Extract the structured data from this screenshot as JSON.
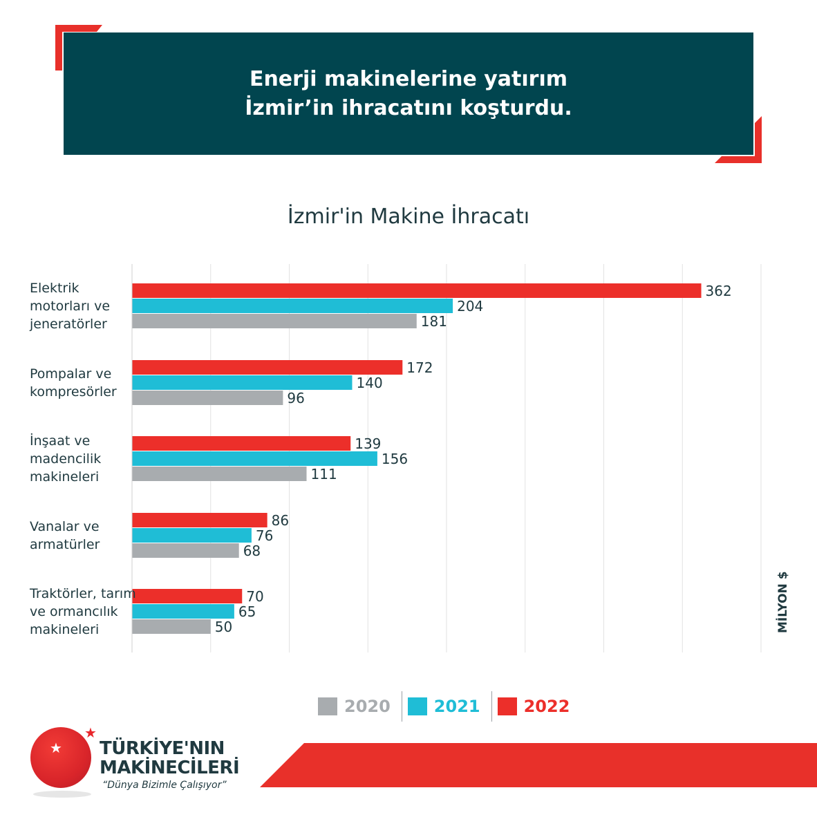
{
  "banner": {
    "line1": "Enerji makinelerine yatırım",
    "line2": "İzmir’in ihracatını koşturdu."
  },
  "colors": {
    "banner_bg": "#01454f",
    "accent_red": "#e8302a",
    "series_2020": "#a8acaf",
    "series_2021": "#1fbdd6",
    "series_2022": "#ec2f2a",
    "text_dark": "#203a40"
  },
  "chart_data": {
    "type": "bar",
    "orientation": "horizontal",
    "title": "İzmir'in Makine İhracatı",
    "unit_label": "MİLYON $",
    "categories": [
      [
        "Elektrik",
        "motorları ve",
        "jeneratörler"
      ],
      [
        "Pompalar ve",
        "kompresörler"
      ],
      [
        "İnşaat ve",
        "madencilik",
        "makineleri"
      ],
      [
        "Vanalar ve",
        "armatürler"
      ],
      [
        "Traktörler, tarım",
        "ve ormancılık",
        "makineleri"
      ]
    ],
    "series": [
      {
        "name": "2022",
        "values": [
          362,
          172,
          139,
          86,
          70
        ]
      },
      {
        "name": "2021",
        "values": [
          204,
          140,
          156,
          76,
          65
        ]
      },
      {
        "name": "2020",
        "values": [
          181,
          96,
          111,
          68,
          50
        ]
      }
    ],
    "legend_order": [
      "2020",
      "2021",
      "2022"
    ],
    "xlim": [
      0,
      400
    ],
    "grid": true,
    "legend_position": "bottom"
  },
  "logo": {
    "line1": "TÜRKİYE'NIN",
    "line2": "MAKİNECİLERİ",
    "slogan": "“Dünya Bizimle Çalışıyor”"
  }
}
